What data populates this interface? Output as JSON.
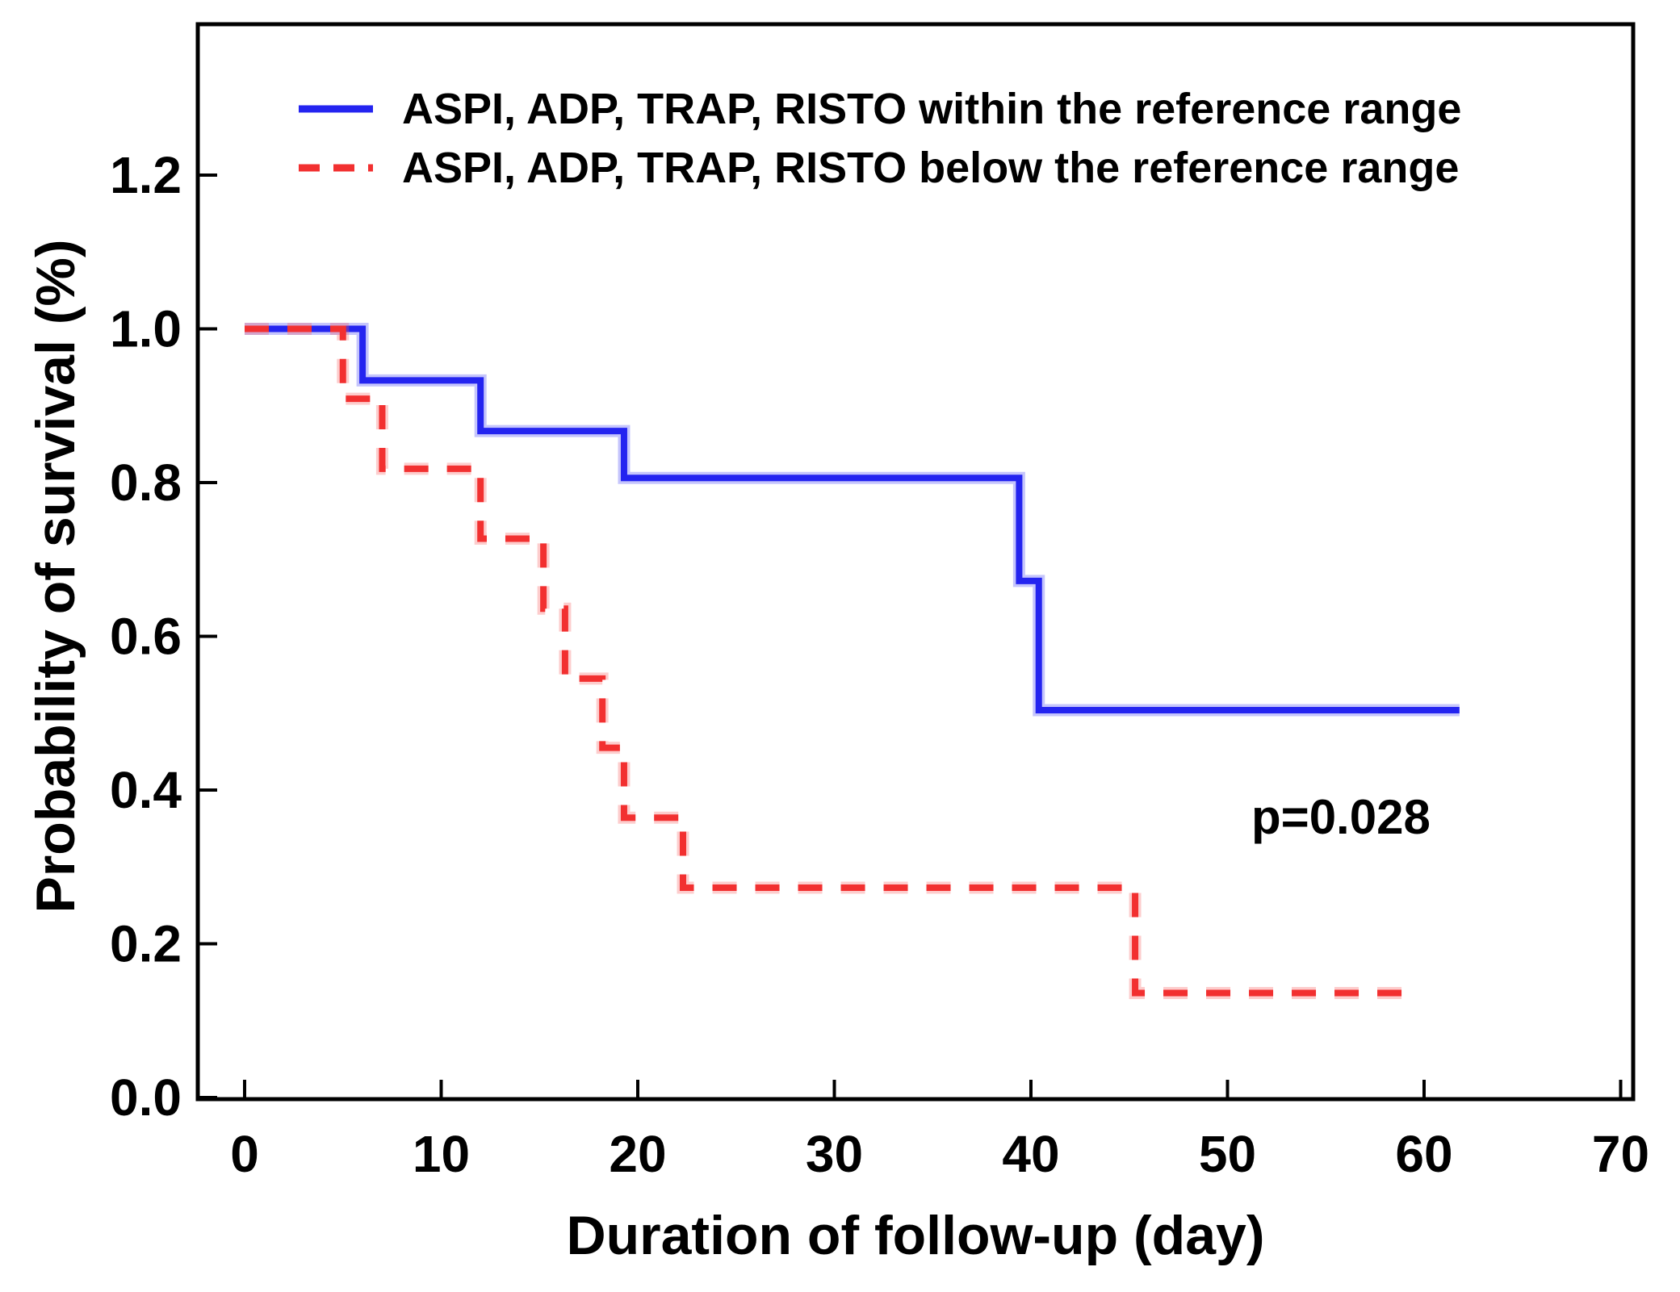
{
  "figure": {
    "p_value_annotation": "p=0.028",
    "axis_color": "#000000",
    "background_color": "#ffffff"
  },
  "chart_data": {
    "type": "line",
    "subtype": "kaplan-meier-step",
    "title": "",
    "xlabel": "Duration of follow-up (day)",
    "ylabel": "Probability of survival (%)",
    "xlim": [
      -2.4,
      70.6
    ],
    "ylim": [
      0,
      1.396
    ],
    "xticks": [
      0,
      10,
      20,
      30,
      40,
      50,
      60,
      70
    ],
    "yticks": [
      "0.0",
      "0.2",
      "0.4",
      "0.6",
      "0.8",
      "1.0",
      "1.2"
    ],
    "grid": false,
    "legend_position": "upper-left-inside",
    "annotation": {
      "text": "p=0.028",
      "x": 56,
      "y": 0.36
    },
    "series": [
      {
        "name": "ASPI, ADP, TRAP, RISTO within the reference range",
        "color": "#2424f0",
        "halo_color": "rgba(90,90,245,0.35)",
        "style": "solid",
        "steps": [
          [
            0,
            1.0
          ],
          [
            6,
            0.933
          ],
          [
            12,
            0.867
          ],
          [
            19.3,
            0.806
          ],
          [
            39.4,
            0.672
          ],
          [
            40.4,
            0.504
          ]
        ],
        "end_t": 61.8
      },
      {
        "name": "ASPI, ADP, TRAP, RISTO below the reference range",
        "color": "#f23030",
        "halo_color": "rgba(248,90,90,0.30)",
        "style": "dashed",
        "steps": [
          [
            0,
            1.0
          ],
          [
            5,
            0.909
          ],
          [
            7,
            0.818
          ],
          [
            12,
            0.727
          ],
          [
            15.2,
            0.636
          ],
          [
            16.3,
            0.545
          ],
          [
            18.2,
            0.455
          ],
          [
            19.3,
            0.364
          ],
          [
            22.3,
            0.273
          ],
          [
            45.3,
            0.136
          ]
        ],
        "end_t": 59.7
      }
    ]
  }
}
